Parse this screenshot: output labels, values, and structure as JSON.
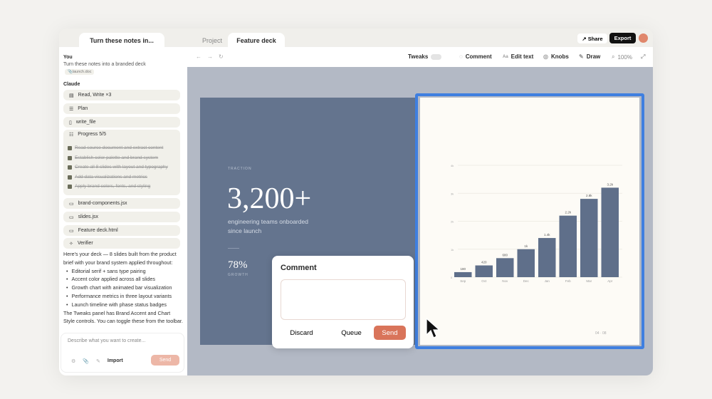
{
  "tabs": {
    "chat": "Turn these notes in...",
    "project": "Project",
    "deck": "Feature deck"
  },
  "header": {
    "share": "Share",
    "export": "Export"
  },
  "chat": {
    "you_label": "You",
    "you_msg": "Turn these notes into a branded deck",
    "attachment": "launch.doc",
    "claude_label": "Claude",
    "steps": [
      "Read, Write ×3",
      "Plan",
      "write_file",
      "Progress 5/5"
    ],
    "tasks": [
      "Read source document and extract content",
      "Establish color palette and brand system",
      "Create all 8 slides with layout and typography",
      "Add data visualizations and metrics",
      "Apply brand colors, fonts, and styling"
    ],
    "files": [
      "brand-components.jsx",
      "slides.jsx",
      "Feature deck.html",
      "Verifier"
    ],
    "reply_intro": "Here's your deck — 8 slides built from the product brief with your brand system applied throughout:",
    "bullets": [
      "Editorial serif + sans type pairing",
      "Accent color applied across all slides",
      "Growth chart with animated bar visualization",
      "Performance metrics in three layout variants",
      "Launch timeline with phase status badges"
    ],
    "reply_outro": "The Tweaks panel has Brand Accent and Chart Style controls. You can toggle these from the toolbar.",
    "input_placeholder": "Describe what you want to create...",
    "import": "Import",
    "send": "Send"
  },
  "toolbar": {
    "tweaks": "Tweaks",
    "comment": "Comment",
    "edit_text": "Edit text",
    "knobs": "Knobs",
    "draw": "Draw",
    "zoom": "100%"
  },
  "slide": {
    "eyebrow": "TRACTION",
    "big_number": "3,200+",
    "caption": "engineering teams onboarded since launch",
    "stat": "78%",
    "stat_label": "GROWTH",
    "page": "04 · 08"
  },
  "comment_popup": {
    "title": "Comment",
    "discard": "Discard",
    "queue": "Queue",
    "send": "Send"
  },
  "colors": {
    "accent": "#d9745a",
    "selection": "#3f7fe0",
    "bar": "#5f6f8a",
    "slide_bg": "#64748e"
  },
  "chart_data": {
    "type": "bar",
    "categories": [
      "Sep",
      "Oct",
      "Nov",
      "Dec",
      "Jan",
      "Feb",
      "Mar",
      "Apr"
    ],
    "values": [
      180,
      420,
      680,
      1000,
      1400,
      2200,
      2800,
      3200
    ],
    "data_labels": [
      "180",
      "420",
      "680",
      "1k",
      "1.4k",
      "2.2k",
      "2.8k",
      "3.2k"
    ],
    "yticks": [
      "0",
      "1k",
      "2k",
      "3k",
      "4k"
    ],
    "ylim": [
      0,
      4000
    ],
    "grid": true
  }
}
